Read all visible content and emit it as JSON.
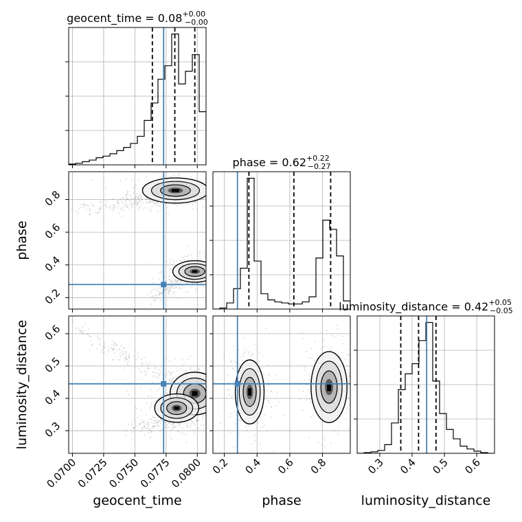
{
  "chart_data": {
    "type": "corner",
    "parameters": [
      "geocent_time",
      "phase",
      "luminosity_distance"
    ],
    "truths": {
      "geocent_time": 0.0773,
      "phase": 0.28,
      "luminosity_distance": 0.445
    },
    "colors": {
      "truth": "#4682b4",
      "hist": "#000000",
      "contour": "#000000",
      "scatter": "#808080",
      "grid": "#b0b0b0"
    },
    "axis_labels": {
      "x": [
        "geocent_time",
        "phase",
        "luminosity_distance"
      ],
      "y": [
        "phase",
        "luminosity_distance"
      ]
    },
    "panels": {
      "geocent_time": {
        "title": {
          "prefix": "geocent_time = ",
          "value": "0.08",
          "plus": "+0.00",
          "minus": "−0.00"
        },
        "range": [
          0.0697,
          0.0807
        ],
        "ticks": [
          0.07,
          0.0725,
          0.075,
          0.0775,
          0.08
        ],
        "tick_labels": [
          "0.0700",
          "0.0725",
          "0.0750",
          "0.0775",
          "0.0800"
        ],
        "quantiles": [
          0.0764,
          0.0782,
          0.0798
        ],
        "hist": {
          "edges": [
            0.0697,
            0.07025,
            0.0708,
            0.07135,
            0.0719,
            0.07245,
            0.073,
            0.07355,
            0.0741,
            0.07465,
            0.0752,
            0.07575,
            0.0763,
            0.07685,
            0.0774,
            0.07795,
            0.0785,
            0.07905,
            0.0796,
            0.08015,
            0.0807
          ],
          "counts": [
            1,
            2,
            4,
            6,
            9,
            11,
            14,
            18,
            22,
            27,
            36,
            56,
            78,
            108,
            125,
            165,
            102,
            118,
            139,
            67
          ]
        }
      },
      "phase": {
        "title": {
          "prefix": "phase = ",
          "value": "0.62",
          "plus": "+0.22",
          "minus": "−0.27"
        },
        "range": [
          0.13,
          0.97
        ],
        "ticks": [
          0.2,
          0.4,
          0.6,
          0.8
        ],
        "tick_labels": [
          "0.2",
          "0.4",
          "0.6",
          "0.8"
        ],
        "quantiles": [
          0.35,
          0.625,
          0.85
        ],
        "hist": {
          "edges": [
            0.13,
            0.172,
            0.214,
            0.256,
            0.298,
            0.34,
            0.382,
            0.424,
            0.466,
            0.508,
            0.55,
            0.592,
            0.634,
            0.676,
            0.718,
            0.76,
            0.802,
            0.844,
            0.886,
            0.928,
            0.97
          ],
          "counts": [
            0,
            1,
            6,
            20,
            40,
            128,
            47,
            15,
            9,
            7,
            6,
            5,
            5,
            7,
            12,
            50,
            87,
            78,
            52,
            8
          ]
        }
      },
      "luminosity_distance": {
        "title": {
          "prefix": "luminosity_distance = ",
          "value": "0.42",
          "plus": "+0.05",
          "minus": "−0.05"
        },
        "range": [
          0.23,
          0.655
        ],
        "ticks": [
          0.3,
          0.4,
          0.5,
          0.6
        ],
        "tick_labels": [
          "0.3",
          "0.4",
          "0.5",
          "0.6"
        ],
        "quantiles": [
          0.365,
          0.42,
          0.474
        ],
        "hist": {
          "edges": [
            0.23,
            0.25125,
            0.2725,
            0.29375,
            0.315,
            0.33625,
            0.3575,
            0.37875,
            0.4,
            0.42125,
            0.4425,
            0.46375,
            0.485,
            0.50625,
            0.5275,
            0.54875,
            0.57,
            0.59125,
            0.6125,
            0.63375,
            0.655
          ],
          "counts": [
            0,
            1,
            2,
            4,
            12,
            42,
            88,
            110,
            124,
            156,
            181,
            100,
            55,
            33,
            20,
            10,
            6,
            3,
            1,
            0
          ]
        }
      }
    },
    "joint": {
      "phase_vs_geocent_time": {
        "modes": [
          {
            "cx": 0.07825,
            "cy": 0.855,
            "sx": 0.0012,
            "sy": 0.035,
            "level": 0.9
          },
          {
            "cx": 0.0798,
            "cy": 0.36,
            "sx": 0.0008,
            "sy": 0.03,
            "level": 1.0
          }
        ],
        "tails": [
          {
            "from": [
              0.07,
              0.73
            ],
            "to": [
              0.077,
              0.82
            ]
          },
          {
            "from": [
              0.076,
              0.2
            ],
            "to": [
              0.0798,
              0.34
            ]
          }
        ],
        "scatter_extent": {
          "x": [
            0.0697,
            0.0807
          ],
          "y": [
            0.17,
            0.93
          ]
        }
      },
      "luminosity_distance_vs_geocent_time": {
        "modes": [
          {
            "cx": 0.0798,
            "cy": 0.415,
            "sx": 0.0009,
            "sy": 0.03,
            "level": 1.0
          },
          {
            "cx": 0.07835,
            "cy": 0.37,
            "sx": 0.0008,
            "sy": 0.02,
            "level": 0.85
          }
        ],
        "tails": [
          {
            "from": [
              0.07,
              0.62
            ],
            "to": [
              0.079,
              0.43
            ]
          },
          {
            "from": [
              0.074,
              0.3
            ],
            "to": [
              0.08,
              0.35
            ]
          }
        ],
        "scatter_extent": {
          "x": [
            0.0697,
            0.0807
          ],
          "y": [
            0.25,
            0.64
          ]
        }
      },
      "luminosity_distance_vs_phase": {
        "modes": [
          {
            "cx": 0.355,
            "cy": 0.42,
            "sx": 0.04,
            "sy": 0.045,
            "level": 1.0
          },
          {
            "cx": 0.84,
            "cy": 0.435,
            "sx": 0.05,
            "sy": 0.05,
            "level": 0.9
          }
        ],
        "scatter_extent": {
          "x": [
            0.2,
            0.95
          ],
          "y": [
            0.28,
            0.6
          ]
        }
      }
    }
  }
}
